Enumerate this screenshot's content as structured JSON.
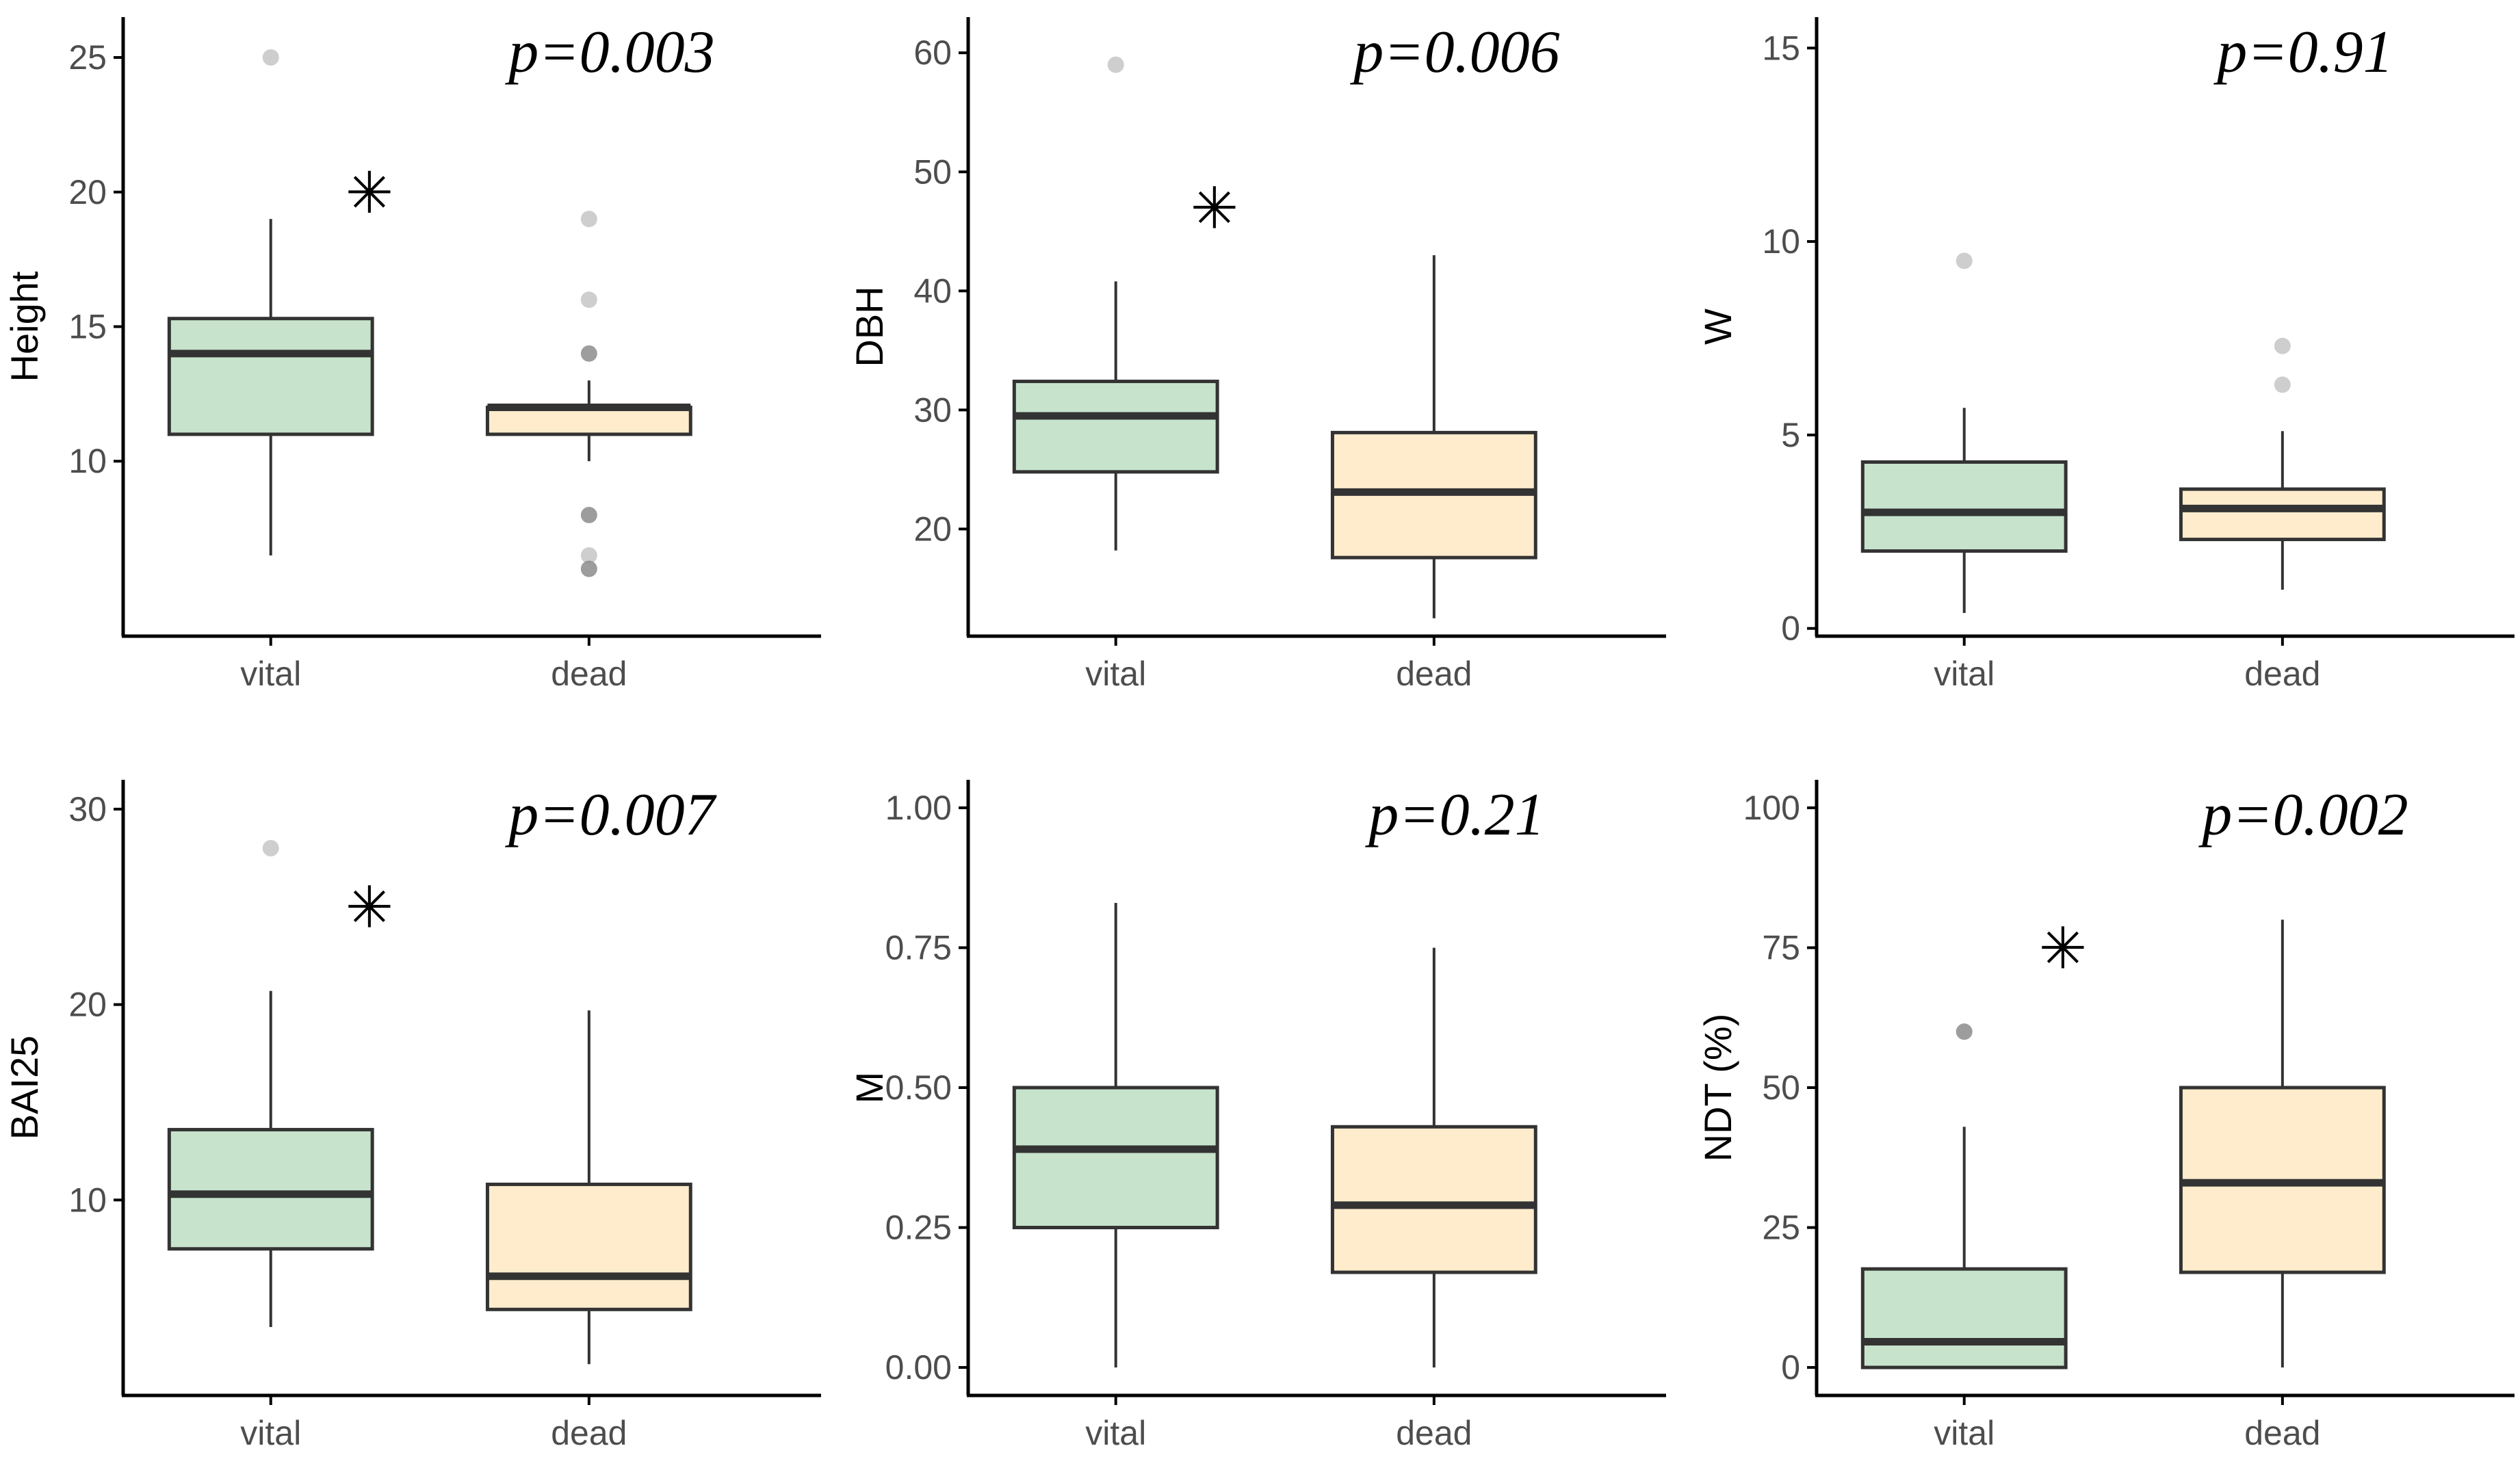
{
  "colors": {
    "vital_fill": "#c7e3cc",
    "dead_fill": "#ffeccc",
    "box_stroke": "#333333",
    "outlier": "#bdbdbd",
    "outlier_dark": "#8c8c8c",
    "axis": "#000000",
    "tick_text": "#4d4d4d"
  },
  "chart_data": [
    {
      "type": "box",
      "ylabel": "Height",
      "p_label": "p=0.003",
      "significant": true,
      "star_y": 20,
      "ylim": [
        3.5,
        26.5
      ],
      "yticks": [
        10,
        15,
        20,
        25
      ],
      "ytick_labels": [
        "10",
        "15",
        "20",
        "25"
      ],
      "categories": [
        "vital",
        "dead"
      ],
      "boxes": [
        {
          "name": "vital",
          "q1": 11,
          "median": 14,
          "q3": 15.3,
          "whisker_low": 6.5,
          "whisker_high": 19,
          "outliers": [
            25
          ],
          "outliers_dark": []
        },
        {
          "name": "dead",
          "q1": 11,
          "median": 12,
          "q3": 12,
          "whisker_low": 10,
          "whisker_high": 13,
          "outliers": [
            19,
            16,
            6.5
          ],
          "outliers_dark": [
            14,
            8,
            6
          ]
        }
      ]
    },
    {
      "type": "box",
      "ylabel": "DBH",
      "p_label": "p=0.006",
      "significant": true,
      "star_y": 47,
      "ylim": [
        11,
        63
      ],
      "yticks": [
        20,
        30,
        40,
        50,
        60
      ],
      "ytick_labels": [
        "20",
        "30",
        "40",
        "50",
        "60"
      ],
      "categories": [
        "vital",
        "dead"
      ],
      "boxes": [
        {
          "name": "vital",
          "q1": 24.8,
          "median": 29.5,
          "q3": 32.4,
          "whisker_low": 18.2,
          "whisker_high": 40.8,
          "outliers": [
            59
          ],
          "outliers_dark": []
        },
        {
          "name": "dead",
          "q1": 17.6,
          "median": 23.1,
          "q3": 28.1,
          "whisker_low": 12.5,
          "whisker_high": 43,
          "outliers": [],
          "outliers_dark": []
        }
      ]
    },
    {
      "type": "box",
      "ylabel": "W",
      "p_label": "p=0.91",
      "significant": false,
      "ylim": [
        -0.2,
        15.8
      ],
      "yticks": [
        0,
        5,
        10,
        15
      ],
      "ytick_labels": [
        "0",
        "5",
        "10",
        "15"
      ],
      "categories": [
        "vital",
        "dead"
      ],
      "boxes": [
        {
          "name": "vital",
          "q1": 2,
          "median": 3,
          "q3": 4.3,
          "whisker_low": 0.4,
          "whisker_high": 5.7,
          "outliers": [
            9.5
          ],
          "outliers_dark": []
        },
        {
          "name": "dead",
          "q1": 2.3,
          "median": 3.1,
          "q3": 3.6,
          "whisker_low": 1,
          "whisker_high": 5.1,
          "outliers": [
            7.3,
            6.3
          ],
          "outliers_dark": []
        }
      ]
    },
    {
      "type": "box",
      "ylabel": "BAI25",
      "p_label": "p=0.007",
      "significant": true,
      "star_y": 25,
      "ylim": [
        0,
        31.5
      ],
      "yticks": [
        10,
        20,
        30
      ],
      "ytick_labels": [
        "10",
        "20",
        "30"
      ],
      "categories": [
        "vital",
        "dead"
      ],
      "boxes": [
        {
          "name": "vital",
          "q1": 7.5,
          "median": 10.3,
          "q3": 13.6,
          "whisker_low": 3.5,
          "whisker_high": 20.7,
          "outliers": [
            28
          ],
          "outliers_dark": []
        },
        {
          "name": "dead",
          "q1": 4.4,
          "median": 6.1,
          "q3": 10.8,
          "whisker_low": 1.6,
          "whisker_high": 19.7,
          "outliers": [],
          "outliers_dark": []
        }
      ]
    },
    {
      "type": "box",
      "ylabel": "M",
      "p_label": "p=0.21",
      "significant": false,
      "ylim": [
        -0.05,
        1.05
      ],
      "yticks": [
        0,
        0.25,
        0.5,
        0.75,
        1
      ],
      "ytick_labels": [
        "0.00",
        "0.25",
        "0.50",
        "0.75",
        "1.00"
      ],
      "categories": [
        "vital",
        "dead"
      ],
      "boxes": [
        {
          "name": "vital",
          "q1": 0.25,
          "median": 0.39,
          "q3": 0.5,
          "whisker_low": 0,
          "whisker_high": 0.83,
          "outliers": [],
          "outliers_dark": []
        },
        {
          "name": "dead",
          "q1": 0.17,
          "median": 0.29,
          "q3": 0.43,
          "whisker_low": 0,
          "whisker_high": 0.75,
          "outliers": [],
          "outliers_dark": []
        }
      ]
    },
    {
      "type": "box",
      "ylabel": "NDT (%)",
      "p_label": "p=0.002",
      "significant": true,
      "star_y": 75,
      "ylim": [
        -5,
        105
      ],
      "yticks": [
        0,
        25,
        50,
        75,
        100
      ],
      "ytick_labels": [
        "0",
        "25",
        "50",
        "75",
        "100"
      ],
      "categories": [
        "vital",
        "dead"
      ],
      "boxes": [
        {
          "name": "vital",
          "q1": 0,
          "median": 4.6,
          "q3": 17.6,
          "whisker_low": 0,
          "whisker_high": 43,
          "outliers": [],
          "outliers_dark": [
            60
          ]
        },
        {
          "name": "dead",
          "q1": 17,
          "median": 33,
          "q3": 50,
          "whisker_low": 0,
          "whisker_high": 80,
          "outliers": [],
          "outliers_dark": []
        }
      ]
    }
  ]
}
